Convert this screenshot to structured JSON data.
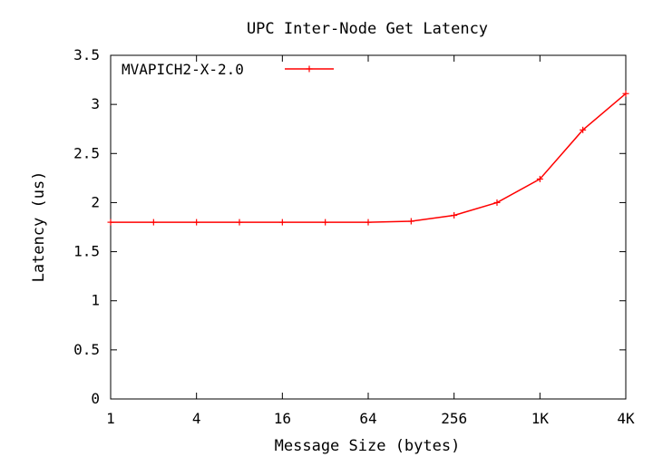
{
  "chart_data": {
    "type": "line",
    "title": "UPC Inter-Node Get Latency",
    "xlabel": "Message Size (bytes)",
    "ylabel": "Latency (us)",
    "x_scale": "log2",
    "x": [
      1,
      2,
      4,
      8,
      16,
      32,
      64,
      128,
      256,
      512,
      1024,
      2048,
      4096
    ],
    "x_ticks": [
      1,
      4,
      16,
      64,
      256,
      1024,
      4096
    ],
    "x_tick_labels": [
      "1",
      "4",
      "16",
      "64",
      "256",
      "1K",
      "4K"
    ],
    "ylim": [
      0,
      3.5
    ],
    "y_ticks": [
      0,
      0.5,
      1,
      1.5,
      2,
      2.5,
      3,
      3.5
    ],
    "y_tick_labels": [
      "0",
      "0.5",
      "1",
      "1.5",
      "2",
      "2.5",
      "3",
      "3.5"
    ],
    "series": [
      {
        "name": "MVAPICH2-X-2.0",
        "color": "#ff0000",
        "values": [
          1.8,
          1.8,
          1.8,
          1.8,
          1.8,
          1.8,
          1.8,
          1.81,
          1.87,
          2.0,
          2.24,
          2.74,
          3.11
        ]
      }
    ],
    "legend_position": "top-left",
    "grid": false
  }
}
